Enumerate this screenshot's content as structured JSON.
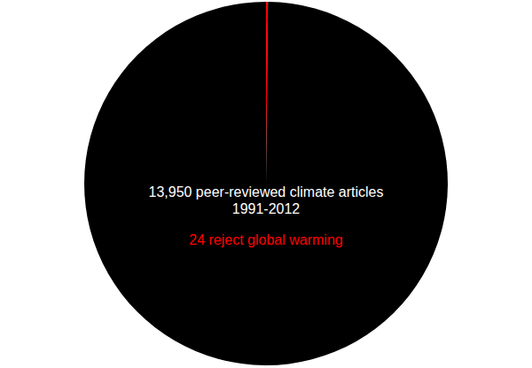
{
  "chart_data": {
    "type": "pie",
    "title": "13,950 peer-reviewed climate articles",
    "subtitle": "1991-2012",
    "annotation": "24 reject global warming",
    "values": [
      24,
      13926
    ],
    "colors": [
      "#ff0000",
      "#000000"
    ],
    "data_labels": false,
    "legend": false
  }
}
